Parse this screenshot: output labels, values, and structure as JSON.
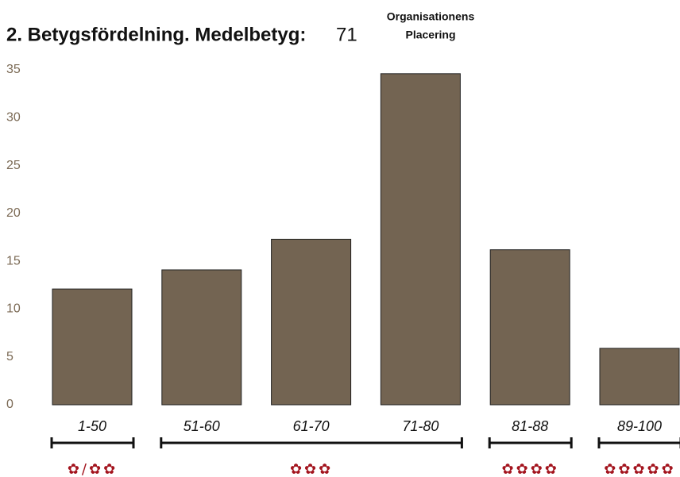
{
  "chart_data": {
    "type": "bar",
    "title": "2. Betygsfördelning. Medelbetyg:",
    "average": "71",
    "annotation": [
      "Organisationens",
      "Placering"
    ],
    "categories": [
      "1-50",
      "51-60",
      "61-70",
      "71-80",
      "81-88",
      "89-100"
    ],
    "values": [
      12.1,
      14.1,
      17.3,
      34.6,
      16.2,
      5.9
    ],
    "color": "#736452",
    "ylim": [
      0,
      35
    ],
    "yticks": [
      0,
      5,
      10,
      15,
      20,
      25,
      30,
      35
    ],
    "grid": false,
    "rating_groups": [
      "✿/✿✿",
      "✿✿✿",
      "✿✿✿✿",
      "✿✿✿✿✿"
    ]
  }
}
